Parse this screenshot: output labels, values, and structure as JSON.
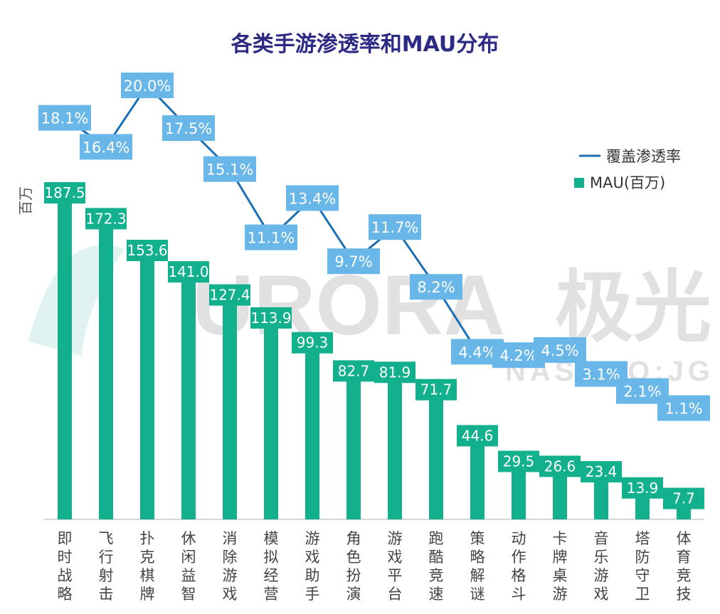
{
  "watermark": {
    "brand": "URORA",
    "cn": "极光",
    "sub": "NASDAQ:JG"
  },
  "chart_data": {
    "type": "bar",
    "title": "各类手游渗透率和MAU分布",
    "ylabel": "百万",
    "categories": [
      "即时战略",
      "飞行射击",
      "扑克棋牌",
      "休闲益智",
      "消除游戏",
      "模拟经营",
      "游戏助手",
      "角色扮演",
      "游戏平台",
      "跑酷竞速",
      "策略解谜",
      "动作格斗",
      "卡牌桌游",
      "音乐游戏",
      "塔防守卫",
      "体育竞技"
    ],
    "series": [
      {
        "name": "MAU(百万)",
        "type": "bar",
        "color": "#12b08c",
        "values": [
          187.5,
          172.3,
          153.6,
          141.0,
          127.4,
          113.9,
          99.3,
          82.7,
          81.9,
          71.7,
          44.6,
          29.5,
          26.6,
          23.4,
          13.9,
          7.7
        ],
        "labels": [
          "187.5",
          "172.3",
          "153.6",
          "141.0",
          "127.4",
          "113.9",
          "99.3",
          "82.7",
          "81.9",
          "71.7",
          "44.6",
          "29.5",
          "26.6",
          "23.4",
          "13.9",
          "7.7"
        ]
      },
      {
        "name": "覆盖渗透率",
        "type": "line",
        "color": "#1b6fb5",
        "values": [
          18.1,
          16.4,
          20.0,
          17.5,
          15.1,
          11.1,
          13.4,
          9.7,
          11.7,
          8.2,
          4.4,
          4.2,
          4.5,
          3.1,
          2.1,
          1.1
        ],
        "labels": [
          "18.1%",
          "16.4%",
          "20.0%",
          "17.5%",
          "15.1%",
          "11.1%",
          "13.4%",
          "9.7%",
          "11.7%",
          "8.2%",
          "4.4%",
          "4.2%",
          "4.5%",
          "3.1%",
          "2.1%",
          "1.1%"
        ]
      }
    ],
    "ylim": [
      0,
      200
    ],
    "y2lim": [
      0,
      22
    ],
    "legend_position": "right",
    "grid": false
  }
}
